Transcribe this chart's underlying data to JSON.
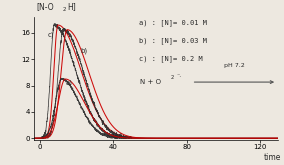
{
  "bg_color": "#ede8e0",
  "xlim": [
    -3,
    130
  ],
  "ylim": [
    -0.3,
    18.5
  ],
  "yticks": [
    0,
    4,
    8,
    12,
    16
  ],
  "xticks": [
    0,
    40,
    80,
    120
  ],
  "legend": [
    "a) : [N]= 0.01 M",
    "b) : [N]= 0.03 M",
    "c) : [N]= 0.2 M"
  ],
  "curve_a": {
    "peak_x": 12,
    "peak_y": 9.0,
    "rise": 0.045,
    "fall": 0.0055
  },
  "curve_b": {
    "peak_x": 13,
    "peak_y": 16.5,
    "rise": 0.06,
    "fall": 0.0042
  },
  "curve_c": {
    "peak_x": 8,
    "peak_y": 17.2,
    "rise": 0.12,
    "fall": 0.0038
  }
}
